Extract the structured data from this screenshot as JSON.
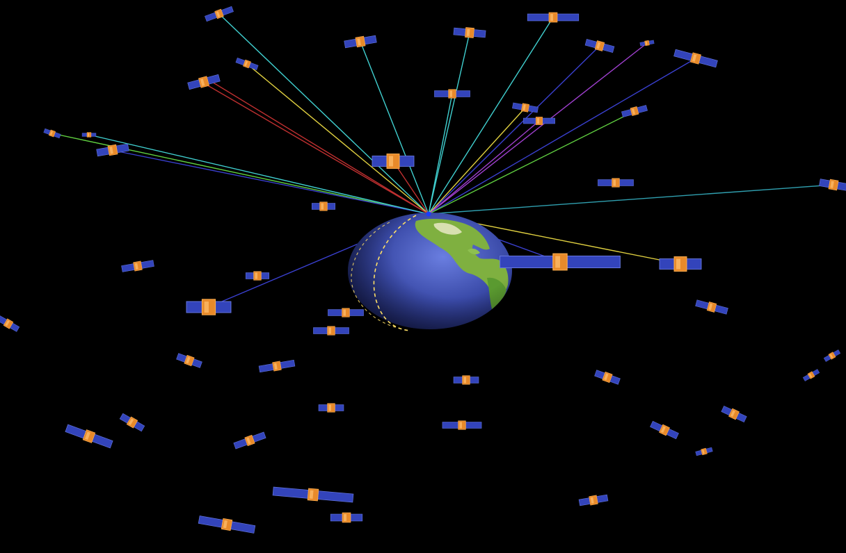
{
  "scene": {
    "background": "#000000",
    "globe": {
      "ocean_color": "#3a4aa8",
      "land_color": "#7fb040",
      "terminator_color": "#ffe066"
    },
    "ground_station_color": "#1a3cff",
    "satellite": {
      "panel_color": "#3344bb",
      "body_color": "#e88a2a"
    },
    "link_colors": {
      "cyan": "#40d0d0",
      "green": "#60d040",
      "red": "#c03030",
      "yellow": "#e0d040",
      "blue": "#3a40d0",
      "purple": "#a040d0",
      "teal": "#30a0b0"
    }
  }
}
